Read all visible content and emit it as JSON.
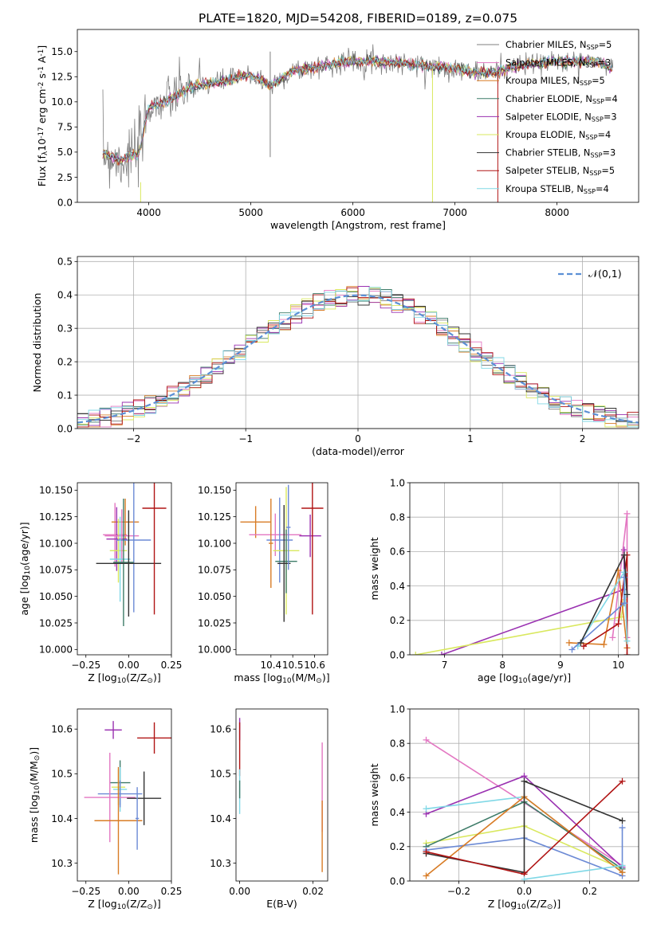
{
  "title": "PLATE=1820, MJD=54208, FIBERID=0189, z=0.075",
  "colors": [
    "#4c4c4c",
    "#e377c2",
    "#d87c26",
    "#3d7b68",
    "#9a31b1",
    "#d9e85e",
    "#333333",
    "#b01313",
    "#80d8e6",
    "#6c8ad5"
  ],
  "models": [
    {
      "label": "Chabrier MILES, N$_{SSP}$=5",
      "color": "#7f7f7f"
    },
    {
      "label": "Salpeter MILES, N$_{SSP}$=3",
      "color": "#e377c2"
    },
    {
      "label": "Kroupa MILES, N$_{SSP}$=5",
      "color": "#d87c26"
    },
    {
      "label": "Chabrier ELODIE, N$_{SSP}$=4",
      "color": "#3d7b68"
    },
    {
      "label": "Salpeter ELODIE, N$_{SSP}$=3",
      "color": "#9a31b1"
    },
    {
      "label": "Kroupa ELODIE, N$_{SSP}$=4",
      "color": "#d9e85e"
    },
    {
      "label": "Chabrier STELIB, N$_{SSP}$=3",
      "color": "#333333"
    },
    {
      "label": "Salpeter STELIB, N$_{SSP}$=5",
      "color": "#b01313"
    },
    {
      "label": "Kroupa STELIB, N$_{SSP}$=4",
      "color": "#80d8e6"
    }
  ],
  "chart_data": [
    {
      "id": "spectrum",
      "type": "line",
      "xlabel": "wavelength [Angstrom, rest frame]",
      "ylabel": "Flux [f$_{\\lambda}$10$^{-17}$ erg cm$^{-2}$ s$^{-1}$ A$^{-1}$]",
      "xlim": [
        3300,
        8800
      ],
      "ylim": [
        0,
        17.2
      ],
      "xticks": [
        4000,
        5000,
        6000,
        7000,
        8000
      ],
      "yticks": [
        0.0,
        2.5,
        5.0,
        7.5,
        10.0,
        12.5,
        15.0
      ],
      "data_shape": [
        [
          3550,
          5.0
        ],
        [
          3700,
          4.2
        ],
        [
          3900,
          4.8
        ],
        [
          4000,
          9.5
        ],
        [
          4200,
          10.2
        ],
        [
          4400,
          11.5
        ],
        [
          4700,
          12.0
        ],
        [
          5000,
          12.7
        ],
        [
          5200,
          11.6
        ],
        [
          5400,
          13.0
        ],
        [
          5700,
          13.6
        ],
        [
          6000,
          14.1
        ],
        [
          6300,
          14.0
        ],
        [
          6600,
          13.7
        ],
        [
          7000,
          13.3
        ],
        [
          7300,
          12.8
        ],
        [
          7700,
          13.7
        ],
        [
          8000,
          14.0
        ],
        [
          8400,
          14.0
        ],
        [
          8550,
          13.2
        ]
      ],
      "grid": false
    },
    {
      "id": "residuals",
      "type": "histogram",
      "xlabel": "(data-model)/error",
      "ylabel": "Normed distribution",
      "xlim": [
        -2.5,
        2.5
      ],
      "ylim": [
        0,
        0.515
      ],
      "xticks": [
        -2,
        -1,
        0,
        1,
        2
      ],
      "yticks": [
        0.0,
        0.1,
        0.2,
        0.3,
        0.4,
        0.5
      ],
      "legend": "$\\mathcal{N}(0,1)$",
      "legend_loc": "upper right",
      "grid": true
    },
    {
      "id": "age_vs_Z",
      "type": "scatter-errorbar",
      "xlabel": "Z [log$_{10}$(Z/Z$_{\\odot}$)]",
      "ylabel": "age  [log$_{10}$(age/yr)]",
      "xlim": [
        -0.3,
        0.25
      ],
      "ylim": [
        9.995,
        10.157
      ],
      "xticks": [
        -0.25,
        0.0,
        0.25
      ],
      "xticklabels": [
        "−0.25",
        "0.00",
        "0.25"
      ],
      "yticks": [
        10.0,
        10.025,
        10.05,
        10.075,
        10.1,
        10.125,
        10.15
      ],
      "points": [
        {
          "x": -0.08,
          "y": 10.108,
          "xerr": 0.07,
          "yerr": 0.03,
          "c": 1
        },
        {
          "x": -0.02,
          "y": 10.12,
          "xerr": 0.08,
          "yerr": 0.022,
          "c": 2
        },
        {
          "x": -0.07,
          "y": 10.104,
          "xerr": 0.06,
          "yerr": 0.03,
          "c": 4
        },
        {
          "x": -0.06,
          "y": 10.093,
          "xerr": 0.05,
          "yerr": 0.03,
          "c": 5
        },
        {
          "x": -0.04,
          "y": 10.107,
          "xerr": 0.1,
          "yerr": 0.025,
          "c": 1
        },
        {
          "x": 0.03,
          "y": 10.103,
          "xerr": 0.1,
          "yerr": 0.068,
          "c": 9
        },
        {
          "x": -0.05,
          "y": 10.085,
          "xerr": 0.06,
          "yerr": 0.04,
          "c": 8
        },
        {
          "x": -0.03,
          "y": 10.082,
          "xerr": 0.06,
          "yerr": 0.06,
          "c": 3
        },
        {
          "x": 0.0,
          "y": 10.081,
          "xerr": 0.19,
          "yerr": 0.05,
          "c": 6
        },
        {
          "x": 0.15,
          "y": 10.133,
          "xerr": 0.07,
          "yerr": 0.1,
          "c": 7
        }
      ]
    },
    {
      "id": "age_vs_mass",
      "type": "scatter-errorbar",
      "xlabel": "mass [log$_{10}$(M/M$_{\\odot}$)]",
      "xlim": [
        10.24,
        10.66
      ],
      "ylim": [
        9.995,
        10.157
      ],
      "xticks": [
        10.4,
        10.5,
        10.6
      ],
      "yticks": [
        10.0,
        10.025,
        10.05,
        10.075,
        10.1,
        10.125,
        10.15
      ],
      "points": [
        {
          "x": 10.33,
          "y": 10.12,
          "xerr": 0.07,
          "yerr": 0.015,
          "c": 2
        },
        {
          "x": 10.42,
          "y": 10.108,
          "xerr": 0.12,
          "yerr": 0.02,
          "c": 1
        },
        {
          "x": 10.44,
          "y": 10.103,
          "xerr": 0.06,
          "yerr": 0.04,
          "c": 9
        },
        {
          "x": 10.47,
          "y": 10.093,
          "xerr": 0.06,
          "yerr": 0.06,
          "c": 5
        },
        {
          "x": 10.47,
          "y": 10.083,
          "xerr": 0.05,
          "yerr": 0.03,
          "c": 3
        },
        {
          "x": 10.46,
          "y": 10.081,
          "xerr": 0.03,
          "yerr": 0.055,
          "c": 6
        },
        {
          "x": 10.58,
          "y": 10.107,
          "xerr": 0.05,
          "yerr": 0.02,
          "c": 4
        },
        {
          "x": 10.59,
          "y": 10.133,
          "xerr": 0.05,
          "yerr": 0.1,
          "c": 7
        },
        {
          "x": 10.4,
          "y": 10.1,
          "xerr": 0.01,
          "yerr": 0.042,
          "c": 2
        },
        {
          "x": 10.48,
          "y": 10.115,
          "xerr": 0.01,
          "yerr": 0.04,
          "c": 9
        }
      ]
    },
    {
      "id": "massweight_vs_age",
      "type": "line",
      "xlabel": "age  [log$_{10}$(age/yr)]",
      "ylabel": "mass weight",
      "xlim": [
        6.4,
        10.35
      ],
      "ylim": [
        0,
        1
      ],
      "xticks": [
        7,
        8,
        9,
        10
      ],
      "yticks": [
        0.0,
        0.2,
        0.4,
        0.6,
        0.8,
        1.0
      ],
      "series": [
        {
          "c": 4,
          "x": [
            6.95,
            10.1,
            10.1
          ],
          "y": [
            0.0,
            0.38,
            0.61
          ]
        },
        {
          "c": 5,
          "x": [
            6.5,
            10.05,
            10.1
          ],
          "y": [
            0.0,
            0.22,
            0.32
          ]
        },
        {
          "c": 1,
          "x": [
            9.9,
            10.15,
            10.15
          ],
          "y": [
            0.1,
            0.82,
            0.1
          ]
        },
        {
          "c": 2,
          "x": [
            9.15,
            9.75,
            10.0,
            10.15
          ],
          "y": [
            0.07,
            0.06,
            0.49,
            0.04
          ]
        },
        {
          "c": 7,
          "x": [
            9.4,
            10.0,
            10.15,
            10.15
          ],
          "y": [
            0.05,
            0.18,
            0.58,
            0.0
          ]
        },
        {
          "c": 8,
          "x": [
            9.3,
            10.1,
            10.15
          ],
          "y": [
            0.05,
            0.48,
            0.08
          ]
        },
        {
          "c": 9,
          "x": [
            9.2,
            10.1,
            10.1
          ],
          "y": [
            0.03,
            0.3,
            0.45
          ]
        },
        {
          "c": 6,
          "x": [
            9.35,
            10.1,
            10.15
          ],
          "y": [
            0.07,
            0.58,
            0.35
          ]
        }
      ],
      "grid": true
    },
    {
      "id": "mass_vs_Z",
      "type": "scatter-errorbar",
      "xlabel": "Z [log$_{10}$(Z/Z$_{\\odot}$)]",
      "ylabel": "mass [log$_{10}$(M/M$_{\\odot}$)]",
      "xlim": [
        -0.3,
        0.25
      ],
      "ylim": [
        10.26,
        10.645
      ],
      "xticks": [
        -0.25,
        0.0,
        0.25
      ],
      "xticklabels": [
        "−0.25",
        "0.00",
        "0.25"
      ],
      "yticks": [
        10.3,
        10.4,
        10.5,
        10.6
      ],
      "points": [
        {
          "x": -0.09,
          "y": 10.598,
          "xerr": 0.05,
          "yerr": 0.02,
          "c": 4
        },
        {
          "x": 0.15,
          "y": 10.58,
          "xerr": 0.1,
          "yerr": 0.035,
          "c": 7
        },
        {
          "x": -0.05,
          "y": 10.48,
          "xerr": 0.06,
          "yerr": 0.05,
          "c": 3
        },
        {
          "x": -0.06,
          "y": 10.47,
          "xerr": 0.04,
          "yerr": 0.04,
          "c": 5
        },
        {
          "x": -0.05,
          "y": 10.465,
          "xerr": 0.04,
          "yerr": 0.05,
          "c": 8
        },
        {
          "x": -0.05,
          "y": 10.455,
          "xerr": 0.13,
          "yerr": 0.03,
          "c": 9
        },
        {
          "x": -0.11,
          "y": 10.447,
          "xerr": 0.15,
          "yerr": 0.1,
          "c": 1
        },
        {
          "x": 0.09,
          "y": 10.445,
          "xerr": 0.1,
          "yerr": 0.06,
          "c": 6
        },
        {
          "x": -0.06,
          "y": 10.395,
          "xerr": 0.14,
          "yerr": 0.12,
          "c": 2
        },
        {
          "x": 0.05,
          "y": 10.4,
          "xerr": 0.01,
          "yerr": 0.07,
          "c": 9
        }
      ]
    },
    {
      "id": "mass_vs_EBV",
      "type": "scatter-errorbar",
      "xlabel": "E(B-V)",
      "xlim": [
        -0.001,
        0.024
      ],
      "ylim": [
        10.26,
        10.645
      ],
      "xticks": [
        0.0,
        0.02
      ],
      "xticklabels": [
        "0.00",
        "0.02"
      ],
      "yticks": [
        10.3,
        10.4,
        10.5,
        10.6
      ],
      "points": [
        {
          "x": 0.0,
          "y": 10.6,
          "yerr": 0.025,
          "c": 4
        },
        {
          "x": 0.0,
          "y": 10.555,
          "yerr": 0.06,
          "c": 7
        },
        {
          "x": 0.0,
          "y": 10.46,
          "yerr": 0.05,
          "c": 8
        },
        {
          "x": 0.0,
          "y": 10.465,
          "yerr": 0.02,
          "c": 3
        },
        {
          "x": 0.0225,
          "y": 10.47,
          "yerr": 0.1,
          "c": 1
        },
        {
          "x": 0.0225,
          "y": 10.36,
          "yerr": 0.08,
          "c": 2
        }
      ]
    },
    {
      "id": "massweight_vs_Z",
      "type": "line",
      "xlabel": "Z [log$_{10}$(Z/Z$_{\\odot}$)]",
      "ylabel": "mass weight",
      "xlim": [
        -0.35,
        0.35
      ],
      "ylim": [
        0,
        1
      ],
      "xticks": [
        -0.2,
        0.0,
        0.2
      ],
      "xticklabels": [
        "−0.2",
        "0.0",
        "0.2"
      ],
      "yticks": [
        0.0,
        0.2,
        0.4,
        0.6,
        0.8,
        1.0
      ],
      "series": [
        {
          "c": 1,
          "x": [
            -0.3,
            0.3
          ],
          "y": [
            0.82,
            0.09
          ]
        },
        {
          "c": 4,
          "x": [
            -0.3,
            0.0,
            0.3
          ],
          "y": [
            0.39,
            0.61,
            0.08
          ]
        },
        {
          "c": 8,
          "x": [
            -0.3,
            0.0,
            0.3
          ],
          "y": [
            0.42,
            0.49,
            0.05
          ]
        },
        {
          "c": 5,
          "x": [
            -0.3,
            0.0,
            0.3
          ],
          "y": [
            0.22,
            0.32,
            0.07
          ]
        },
        {
          "c": 3,
          "x": [
            -0.3,
            0.0,
            0.3
          ],
          "y": [
            0.2,
            0.46,
            0.07
          ]
        },
        {
          "c": 9,
          "x": [
            -0.3,
            0.0,
            0.3,
            0.3
          ],
          "y": [
            0.18,
            0.25,
            0.03,
            0.31
          ]
        },
        {
          "c": 2,
          "x": [
            -0.3,
            0.0,
            0.3
          ],
          "y": [
            0.03,
            0.49,
            0.05
          ]
        },
        {
          "c": 6,
          "x": [
            -0.3,
            0.0,
            0.0,
            0.3
          ],
          "y": [
            0.16,
            0.05,
            0.58,
            0.35
          ]
        },
        {
          "c": 7,
          "x": [
            -0.3,
            0.0,
            0.3
          ],
          "y": [
            0.17,
            0.04,
            0.58
          ]
        },
        {
          "c": 8,
          "x": [
            0.0,
            0.3
          ],
          "y": [
            0.01,
            0.09
          ]
        }
      ],
      "grid": true
    }
  ]
}
